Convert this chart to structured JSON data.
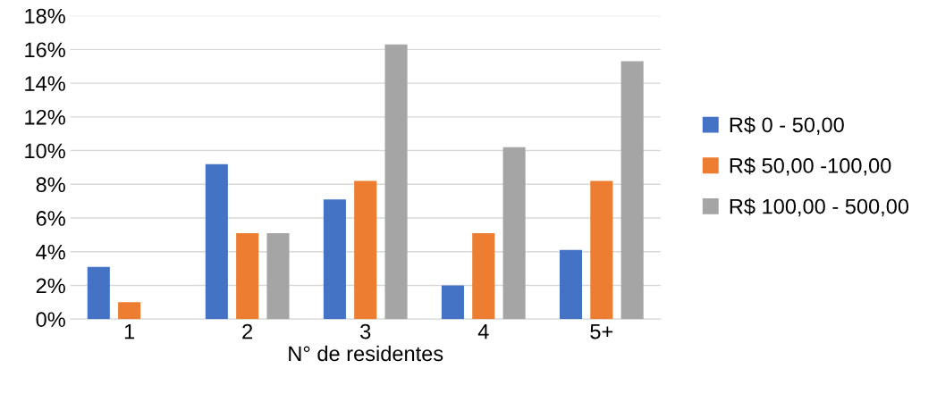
{
  "chart_data": {
    "type": "bar",
    "xlabel": "N° de residentes",
    "categories": [
      "1",
      "2",
      "3",
      "4",
      "5+"
    ],
    "series": [
      {
        "name": "R$ 0 - 50,00",
        "color": "#4472c4",
        "values": [
          3.1,
          9.2,
          7.1,
          2.0,
          4.1
        ]
      },
      {
        "name": "R$ 50,00 -100,00",
        "color": "#ed7d31",
        "values": [
          1.0,
          5.1,
          8.2,
          5.1,
          8.2
        ]
      },
      {
        "name": "R$ 100,00 - 500,00",
        "color": "#a5a5a5",
        "values": [
          0,
          5.1,
          16.3,
          10.2,
          15.3
        ]
      }
    ],
    "ylim": [
      0,
      18
    ],
    "yticks": [
      {
        "value": 0,
        "label": "0%"
      },
      {
        "value": 2,
        "label": "2%"
      },
      {
        "value": 4,
        "label": "4%"
      },
      {
        "value": 6,
        "label": "6%"
      },
      {
        "value": 8,
        "label": "8%"
      },
      {
        "value": 10,
        "label": "10%"
      },
      {
        "value": 12,
        "label": "12%"
      },
      {
        "value": 14,
        "label": "14%"
      },
      {
        "value": 16,
        "label": "16%"
      },
      {
        "value": 18,
        "label": "18%"
      }
    ],
    "grid": "y",
    "legend": "right"
  }
}
